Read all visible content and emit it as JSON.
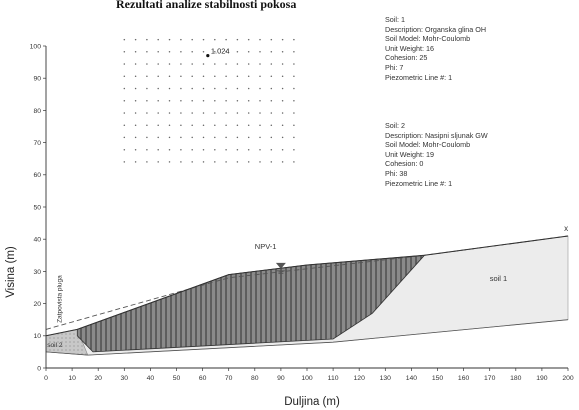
{
  "caption": "Rezultati analize stabilnosti pokosa",
  "axes": {
    "xlabel": "Duljina (m)",
    "ylabel": "Visina (m)",
    "xlim": [
      0,
      200
    ],
    "ylim": [
      0,
      100
    ],
    "xticks": [
      0,
      10,
      20,
      30,
      40,
      50,
      60,
      70,
      80,
      90,
      100,
      110,
      120,
      130,
      140,
      150,
      160,
      170,
      180,
      190,
      200
    ],
    "yticks": [
      0,
      10,
      20,
      30,
      40,
      50,
      60,
      70,
      80,
      90,
      100
    ]
  },
  "annotations": {
    "factor_of_safety": "1.024",
    "piezometric_line": "NPV-1",
    "soil1_label": "soil 1",
    "soil2_label": "soil 2",
    "boundary_label": "Zatpovista pluga",
    "left_marker": "",
    "right_marker": "x"
  },
  "legend": {
    "soil1": {
      "title": "Soil: 1",
      "description": "Description: Organska glina OH",
      "model": "Soil Model: Mohr-Coulomb",
      "unit_weight": "Unit Weight: 16",
      "cohesion": "Cohesion: 25",
      "phi": "Phi: 7",
      "piezo": "Piezometric Line #: 1"
    },
    "soil2": {
      "title": "Soil: 2",
      "description": "Description: Nasipni sljunak GW",
      "model": "Soil Model: Mohr-Coulomb",
      "unit_weight": "Unit Weight: 19",
      "cohesion": "Cohesion: 0",
      "phi": "Phi: 38",
      "piezo": "Piezometric Line #: 1"
    }
  },
  "geometry_data": {
    "ground_surface": [
      [
        0,
        10
      ],
      [
        12,
        12
      ],
      [
        70,
        29
      ],
      [
        100,
        32
      ],
      [
        145,
        35
      ],
      [
        200,
        41
      ]
    ],
    "bedrock_line": [
      [
        0,
        5
      ],
      [
        16,
        4
      ],
      [
        110,
        8
      ],
      [
        200,
        15
      ]
    ],
    "slip_surface": [
      [
        12,
        10
      ],
      [
        18,
        5
      ],
      [
        110,
        9
      ],
      [
        125,
        17
      ],
      [
        145,
        35
      ]
    ],
    "piezometric_line": [
      [
        0,
        12
      ],
      [
        70,
        28
      ],
      [
        145,
        35
      ],
      [
        200,
        41
      ]
    ],
    "grid": {
      "x": [
        30,
        95
      ],
      "y": [
        64,
        102
      ],
      "nx": 16,
      "ny": 11
    },
    "slip_center": [
      62,
      97
    ]
  },
  "colors": {
    "slip_hatch": "#4a4a4a",
    "slip_fill": "#8a8a8a",
    "soil1_fill": "#ececec",
    "soil2_fill": "#c8c8c8",
    "axis": "#333333",
    "grid_dot": "#666666"
  }
}
